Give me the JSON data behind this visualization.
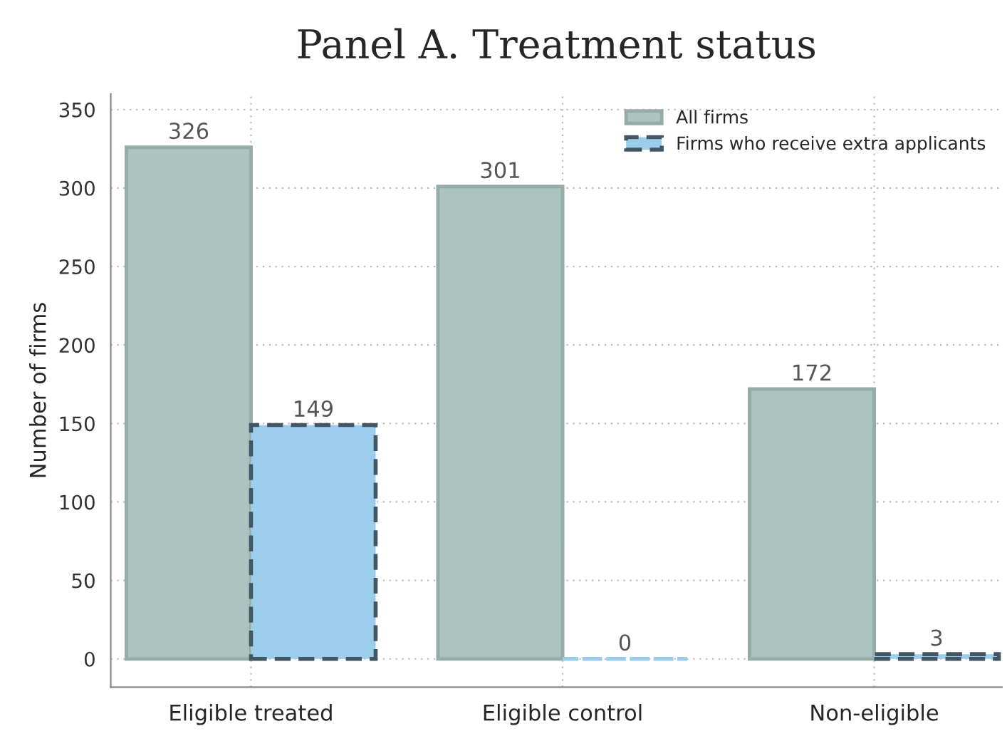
{
  "chart_data": {
    "type": "bar",
    "title": "Panel A. Treatment status",
    "ylabel": "Number of firms",
    "categories": [
      "Eligible treated",
      "Eligible control",
      "Non-eligible"
    ],
    "series": [
      {
        "name": "All firms",
        "color": "#abc4bf",
        "values": [
          326,
          301,
          172
        ],
        "line_style": "solid"
      },
      {
        "name": "Firms who receive extra applicants",
        "color": "#9ccdec",
        "values": [
          149,
          0,
          3
        ],
        "line_style": "dashed"
      }
    ],
    "ylim": [
      -18,
      360
    ],
    "yticks": [
      0,
      50,
      100,
      150,
      200,
      250,
      300,
      350
    ],
    "data_labels": true,
    "grid": true,
    "legend": "top right"
  }
}
